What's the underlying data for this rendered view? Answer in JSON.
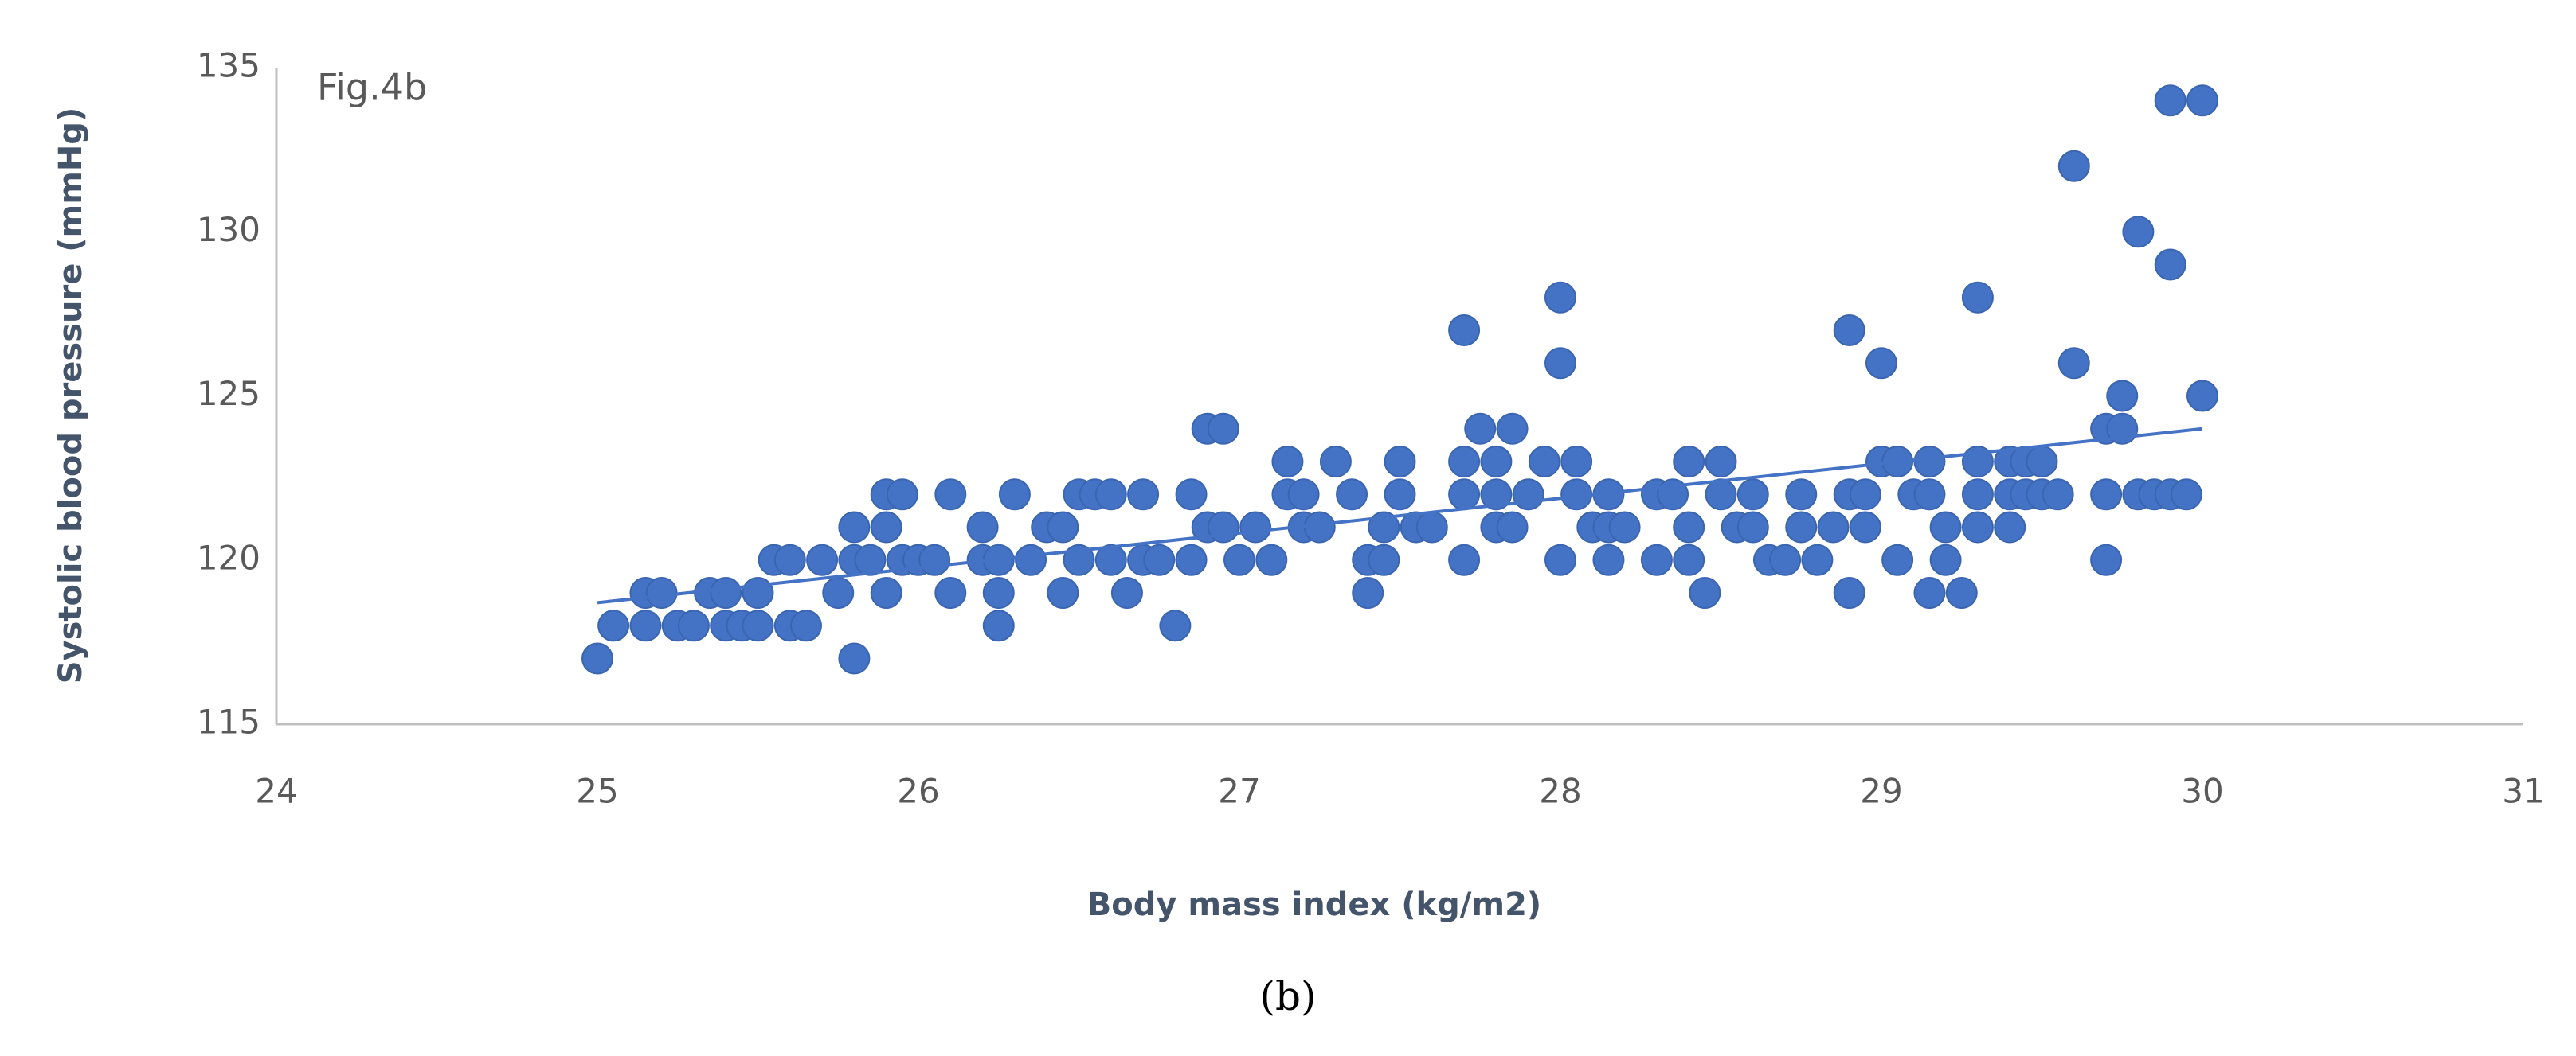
{
  "chart_data": {
    "type": "scatter",
    "annotation": "Fig.4b",
    "caption": "(b)",
    "x_label": "Body mass index (kg/m2)",
    "y_label": "Systolic blood pressure (mmHg)",
    "color": "#4472c4",
    "x": [
      25.0,
      25.05,
      25.15,
      25.2,
      25.15,
      25.25,
      25.3,
      25.35,
      25.4,
      25.5,
      25.4,
      25.45,
      25.5,
      25.55,
      25.6,
      25.7,
      25.6,
      25.65,
      25.75,
      25.8,
      25.8,
      25.8,
      25.85,
      25.9,
      25.95,
      25.9,
      25.9,
      25.95,
      26.0,
      26.05,
      26.1,
      26.1,
      26.2,
      26.25,
      26.2,
      26.25,
      26.25,
      26.3,
      26.35,
      26.4,
      26.45,
      26.45,
      26.5,
      26.5,
      26.55,
      26.6,
      26.6,
      26.65,
      26.7,
      26.7,
      26.75,
      26.8,
      26.85,
      26.85,
      26.9,
      26.9,
      26.95,
      26.95,
      27.0,
      27.1,
      27.05,
      27.15,
      27.15,
      27.2,
      27.2,
      27.25,
      27.3,
      27.35,
      27.4,
      27.4,
      27.45,
      27.45,
      27.5,
      27.5,
      27.55,
      27.6,
      27.7,
      27.7,
      27.7,
      27.7,
      27.75,
      27.8,
      27.8,
      27.8,
      27.85,
      27.85,
      27.95,
      27.9,
      28.0,
      28.0,
      28.0,
      28.05,
      28.05,
      28.1,
      28.15,
      28.15,
      28.15,
      28.2,
      28.3,
      28.3,
      28.35,
      28.4,
      28.4,
      28.4,
      28.45,
      28.5,
      28.5,
      28.55,
      28.6,
      28.6,
      28.65,
      28.7,
      28.75,
      28.75,
      28.8,
      28.85,
      28.9,
      28.9,
      28.9,
      28.95,
      28.95,
      29.0,
      29.0,
      29.05,
      29.05,
      29.1,
      29.15,
      29.15,
      29.15,
      29.2,
      29.2,
      29.25,
      29.3,
      29.3,
      29.3,
      29.3,
      29.4,
      29.4,
      29.4,
      29.45,
      29.45,
      29.5,
      29.5,
      29.55,
      29.6,
      29.6,
      29.7,
      29.7,
      29.7,
      29.75,
      29.75,
      29.8,
      29.8,
      29.85,
      29.9,
      29.9,
      29.9,
      29.95,
      30.0,
      30.0
    ],
    "values": [
      117,
      118,
      119,
      119,
      118,
      118,
      118,
      119,
      119,
      119,
      118,
      118,
      118,
      120,
      120,
      120,
      118,
      118,
      119,
      121,
      117,
      120,
      120,
      122,
      122,
      121,
      119,
      120,
      120,
      120,
      122,
      119,
      121,
      118,
      120,
      120,
      119,
      122,
      120,
      121,
      121,
      119,
      122,
      120,
      122,
      120,
      122,
      119,
      120,
      122,
      120,
      118,
      122,
      120,
      121,
      124,
      124,
      121,
      120,
      120,
      121,
      122,
      123,
      122,
      121,
      121,
      123,
      122,
      120,
      119,
      120,
      121,
      122,
      123,
      121,
      121,
      123,
      127,
      122,
      120,
      124,
      123,
      122,
      121,
      124,
      121,
      123,
      122,
      128,
      126,
      120,
      122,
      123,
      121,
      122,
      120,
      121,
      121,
      120,
      122,
      122,
      123,
      120,
      121,
      119,
      123,
      122,
      121,
      122,
      121,
      120,
      120,
      121,
      122,
      120,
      121,
      122,
      127,
      119,
      122,
      121,
      126,
      123,
      123,
      120,
      122,
      122,
      123,
      119,
      120,
      121,
      119,
      122,
      123,
      128,
      121,
      122,
      121,
      123,
      123,
      122,
      123,
      122,
      122,
      132,
      126,
      122,
      120,
      124,
      125,
      124,
      122,
      130,
      122,
      129,
      134,
      122,
      122,
      134,
      125
    ],
    "trendline": {
      "x": [
        25,
        30
      ],
      "y": [
        118.7,
        124.0
      ]
    },
    "xlim": [
      24,
      31
    ],
    "xticks": [
      24,
      25,
      26,
      27,
      28,
      29,
      30,
      31
    ],
    "ylim": [
      115,
      135
    ],
    "yticks": [
      115,
      120,
      125,
      130,
      135
    ],
    "grid": false
  }
}
